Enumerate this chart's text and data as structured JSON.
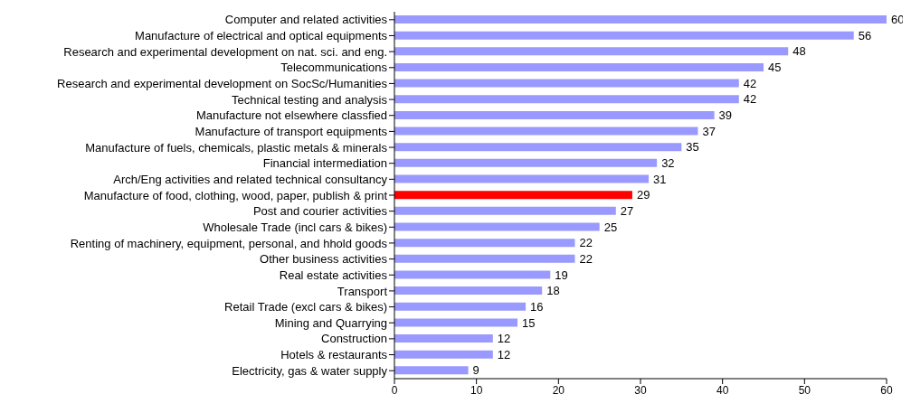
{
  "chart_data": {
    "type": "bar",
    "orientation": "horizontal",
    "categories": [
      "Computer and related activities",
      "Manufacture of electrical and optical equipments",
      "Research and experimental development on nat. sci. and eng.",
      "Telecommunications",
      "Research and experimental development on SocSc/Humanities",
      "Technical testing and analysis",
      "Manufacture not elsewhere classfied",
      "Manufacture of transport equipments",
      "Manufacture of fuels, chemicals, plastic metals & minerals",
      "Financial intermediation",
      "Arch/Eng activities and related technical consultancy",
      "Manufacture of food, clothing, wood, paper, publish & print",
      "Post and courier activities",
      "Wholesale Trade (incl cars & bikes)",
      "Renting of machinery, equipment, personal, and hhold goods",
      "Other business activities",
      "Real estate activities",
      "Transport",
      "Retail Trade (excl cars & bikes)",
      "Mining and Quarrying",
      "Construction",
      "Hotels & restaurants",
      "Electricity, gas & water supply"
    ],
    "values": [
      60,
      56,
      48,
      45,
      42,
      42,
      39,
      37,
      35,
      32,
      31,
      29,
      27,
      25,
      22,
      22,
      19,
      18,
      16,
      15,
      12,
      12,
      9
    ],
    "colors": [
      "#9999ff",
      "#9999ff",
      "#9999ff",
      "#9999ff",
      "#9999ff",
      "#9999ff",
      "#9999ff",
      "#9999ff",
      "#9999ff",
      "#9999ff",
      "#9999ff",
      "#ff0000",
      "#9999ff",
      "#9999ff",
      "#9999ff",
      "#9999ff",
      "#9999ff",
      "#9999ff",
      "#9999ff",
      "#9999ff",
      "#9999ff",
      "#9999ff",
      "#9999ff"
    ],
    "xlim": [
      0,
      60
    ],
    "xticks": [
      0,
      10,
      20,
      30,
      40,
      50,
      60
    ],
    "data_labels": true
  }
}
